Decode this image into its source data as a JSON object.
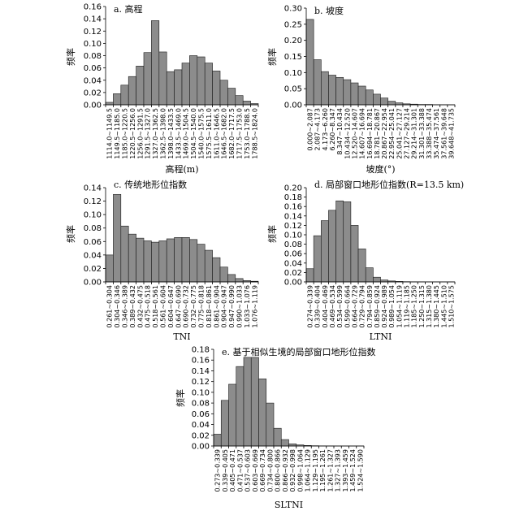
{
  "chart_data": [
    {
      "id": "a",
      "type": "bar",
      "title": "a. 高程",
      "xlabel": "高程(m)",
      "ylabel": "频率",
      "ylim": [
        0,
        0.16
      ],
      "yticks": [
        "0.00",
        "0.02",
        "0.04",
        "0.06",
        "0.08",
        "0.10",
        "0.12",
        "0.14",
        "0.16"
      ],
      "categories": [
        "1114.0~1149.5",
        "1149.5~1185.0",
        "1185.0~1220.5",
        "1220.5~1256.0",
        "1256.0~1291.5",
        "1291.5~1327.0",
        "1327.0~1362.5",
        "1362.5~1398.0",
        "1398.0~1433.5",
        "1433.5~1469.0",
        "1469.0~1504.5",
        "1504.5~1540.0",
        "1540.0~1575.5",
        "1575.5~1611.0",
        "1611.0~1646.5",
        "1646.5~1682.0",
        "1682.0~1717.5",
        "1717.5~1753.0",
        "1753.0~1788.5",
        "1788.5~1824.0"
      ],
      "values": [
        0.004,
        0.018,
        0.032,
        0.046,
        0.063,
        0.085,
        0.137,
        0.086,
        0.054,
        0.057,
        0.068,
        0.08,
        0.078,
        0.068,
        0.055,
        0.04,
        0.027,
        0.015,
        0.006,
        0.002
      ]
    },
    {
      "id": "b",
      "type": "bar",
      "title": "b. 坡度",
      "xlabel": "坡度(°)",
      "ylabel": "频率",
      "ylim": [
        0,
        0.3
      ],
      "yticks": [
        "0.00",
        "0.05",
        "0.10",
        "0.15",
        "0.20",
        "0.25",
        "0.30"
      ],
      "categories": [
        "0.000~2.087",
        "2.087~4.173",
        "4.173~6.260",
        "6.260~8.347",
        "8.347~10.434",
        "10.434~12.520",
        "12.520~14.607",
        "14.607~16.694",
        "16.694~18.781",
        "18.781~20.867",
        "20.867~22.954",
        "22.954~25.041",
        "25.041~27.127",
        "27.127~29.214",
        "29.214~31.301",
        "31.301~33.388",
        "33.388~35.474",
        "35.474~37.561",
        "37.561~39.648",
        "39.648~41.735"
      ],
      "values": [
        0.265,
        0.14,
        0.103,
        0.092,
        0.085,
        0.078,
        0.068,
        0.058,
        0.046,
        0.033,
        0.021,
        0.011,
        0.006,
        0.003,
        0.002,
        0.001,
        0.001,
        0.0005,
        0.0003,
        0.0002
      ]
    },
    {
      "id": "c",
      "type": "bar",
      "title": "c. 传统地形位指数",
      "xlabel": "TNI",
      "ylabel": "频率",
      "ylim": [
        0,
        0.14
      ],
      "yticks": [
        "0.00",
        "0.02",
        "0.04",
        "0.06",
        "0.08",
        "0.10",
        "0.12",
        "0.14"
      ],
      "categories": [
        "0.261~0.304",
        "0.304~0.346",
        "0.346~0.389",
        "0.389~0.432",
        "0.432~0.475",
        "0.475~0.518",
        "0.518~0.561",
        "0.561~0.604",
        "0.604~0.647",
        "0.647~0.690",
        "0.690~0.732",
        "0.732~0.775",
        "0.775~0.818",
        "0.818~0.861",
        "0.861~0.904",
        "0.904~0.947",
        "0.947~0.990",
        "0.990~1.033",
        "1.033~1.076",
        "1.076~1.119"
      ],
      "values": [
        0.04,
        0.13,
        0.083,
        0.071,
        0.065,
        0.061,
        0.059,
        0.061,
        0.064,
        0.066,
        0.066,
        0.063,
        0.056,
        0.047,
        0.036,
        0.022,
        0.011,
        0.005,
        0.002,
        0.001
      ]
    },
    {
      "id": "d",
      "type": "bar",
      "title": "d. 局部窗口地形位指数(R=13.5 km)",
      "xlabel": "LTNI",
      "ylabel": "频率",
      "ylim": [
        0,
        0.2
      ],
      "yticks": [
        "0.00",
        "0.02",
        "0.04",
        "0.06",
        "0.08",
        "0.10",
        "0.12",
        "0.14",
        "0.16",
        "0.18",
        "0.20"
      ],
      "categories": [
        "0.274~0.339",
        "0.339~0.404",
        "0.404~0.469",
        "0.469~0.534",
        "0.534~0.599",
        "0.599~0.664",
        "0.664~0.729",
        "0.729~0.794",
        "0.794~0.859",
        "0.859~0.924",
        "0.924~0.989",
        "0.989~1.054",
        "1.054~1.119",
        "1.119~1.185",
        "1.185~1.250",
        "1.250~1.315",
        "1.315~1.380",
        "1.380~1.445",
        "1.445~1.510",
        "1.510~1.575"
      ],
      "values": [
        0.028,
        0.098,
        0.13,
        0.152,
        0.172,
        0.17,
        0.12,
        0.07,
        0.03,
        0.01,
        0.004,
        0.002,
        0.001,
        0.0005,
        0.0003,
        0.0002,
        0.0001,
        0.0001,
        0.0001,
        0.0001
      ]
    },
    {
      "id": "e",
      "type": "bar",
      "title": "e. 基于相似生境的局部窗口地形位指数",
      "xlabel": "SLTNI",
      "ylabel": "频率",
      "ylim": [
        0,
        0.18
      ],
      "yticks": [
        "0.00",
        "0.02",
        "0.04",
        "0.06",
        "0.08",
        "0.10",
        "0.12",
        "0.14",
        "0.16",
        "0.18"
      ],
      "categories": [
        "0.273~0.339",
        "0.339~0.405",
        "0.405~0.471",
        "0.471~0.537",
        "0.537~0.603",
        "0.603~0.669",
        "0.669~0.734",
        "0.734~0.800",
        "0.800~0.866",
        "0.866~0.932",
        "0.932~0.998",
        "0.998~1.064",
        "1.064~1.129",
        "1.129~1.195",
        "1.195~1.261",
        "1.261~1.327",
        "1.327~1.393",
        "1.393~1.459",
        "1.459~1.524",
        "1.524~1.590"
      ],
      "values": [
        0.022,
        0.085,
        0.115,
        0.148,
        0.165,
        0.165,
        0.125,
        0.08,
        0.033,
        0.012,
        0.004,
        0.002,
        0.001,
        0.0005,
        0.0003,
        0.0002,
        0.0001,
        0.0001,
        0.0001,
        0.0001
      ]
    }
  ]
}
